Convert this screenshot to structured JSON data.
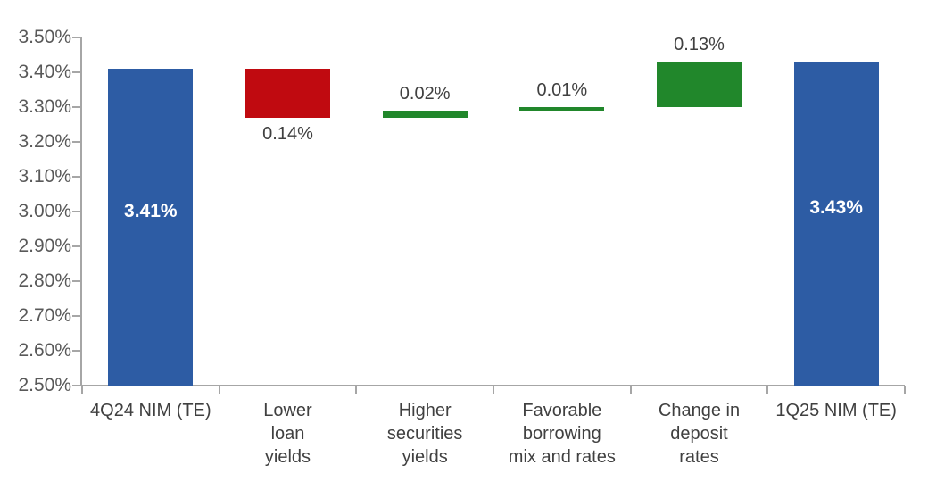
{
  "chart_data": {
    "type": "bar",
    "subtype": "waterfall",
    "title": "",
    "xlabel": "",
    "ylabel": "",
    "y_axis": {
      "min": 2.5,
      "max": 3.5,
      "ticks": [
        {
          "value": 3.5,
          "label": "3.50%"
        },
        {
          "value": 3.4,
          "label": "3.40%"
        },
        {
          "value": 3.3,
          "label": "3.30%"
        },
        {
          "value": 3.2,
          "label": "3.20%"
        },
        {
          "value": 3.1,
          "label": "3.10%"
        },
        {
          "value": 3.0,
          "label": "3.00%"
        },
        {
          "value": 2.9,
          "label": "2.90%"
        },
        {
          "value": 2.8,
          "label": "2.80%"
        },
        {
          "value": 2.7,
          "label": "2.70%"
        },
        {
          "value": 2.6,
          "label": "2.60%"
        },
        {
          "value": 2.5,
          "label": "2.50%"
        }
      ]
    },
    "grid": false,
    "legend": false,
    "categories": [
      {
        "name": "4Q24 NIM (TE)",
        "label_lines": [
          "4Q24 NIM (TE)"
        ]
      },
      {
        "name": "Lower loan yields",
        "label_lines": [
          "Lower",
          "loan",
          "yields"
        ]
      },
      {
        "name": "Higher securities yields",
        "label_lines": [
          "Higher",
          "securities",
          "yields"
        ]
      },
      {
        "name": "Favorable borrowing mix and rates",
        "label_lines": [
          "Favorable",
          "borrowing",
          "mix and rates"
        ]
      },
      {
        "name": "Change in deposit rates",
        "label_lines": [
          "Change in",
          "deposit",
          "rates"
        ]
      },
      {
        "name": "1Q25 NIM (TE)",
        "label_lines": [
          "1Q25 NIM (TE)"
        ]
      }
    ],
    "bars": [
      {
        "category": "4Q24 NIM (TE)",
        "start": 2.5,
        "end": 3.41,
        "type": "total",
        "label": "3.41%",
        "label_position": "inside"
      },
      {
        "category": "Lower loan yields",
        "start": 3.41,
        "end": 3.27,
        "type": "decrease",
        "label": "0.14%",
        "label_position": "below"
      },
      {
        "category": "Higher securities yields",
        "start": 3.27,
        "end": 3.29,
        "type": "increase",
        "label": "0.02%",
        "label_position": "above"
      },
      {
        "category": "Favorable borrowing mix and rates",
        "start": 3.29,
        "end": 3.3,
        "type": "increase",
        "label": "0.01%",
        "label_position": "above"
      },
      {
        "category": "Change in deposit rates",
        "start": 3.3,
        "end": 3.43,
        "type": "increase",
        "label": "0.13%",
        "label_position": "above"
      },
      {
        "category": "1Q25 NIM (TE)",
        "start": 2.5,
        "end": 3.43,
        "type": "total",
        "label": "3.43%",
        "label_position": "inside"
      }
    ],
    "colors": {
      "total": "#2d5ca4",
      "decrease": "#c00a10",
      "increase": "#21872b",
      "axis": "#a6a6a6",
      "y_tick_label": "#595959",
      "data_label": "#404040",
      "inside_label": "#ffffff"
    }
  }
}
